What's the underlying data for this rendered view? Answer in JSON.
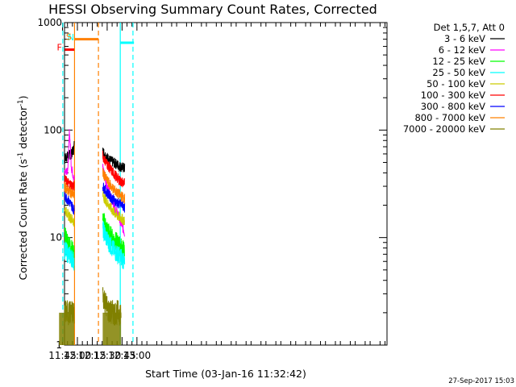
{
  "chart_data": {
    "type": "line",
    "title": "HESSI Observing Summary Count Rates, Corrected",
    "xlabel": "Start Time (03-Jan-16 11:32:42)",
    "ylabel": "Corrected Count Rate (s",
    "ylabel_sup": "-1",
    "ylabel_tail": " detector",
    "ylabel_tail_sup": "-1",
    "ylabel_end": ")",
    "y_scale": "log",
    "ylim": [
      1,
      1000
    ],
    "xlim_minutes": [
      707,
      1032
    ],
    "x_ticks": [
      {
        "label": "11:45",
        "minute": 705
      },
      {
        "label": "12:00",
        "minute": 720
      },
      {
        "label": "12:15",
        "minute": 735
      },
      {
        "label": "12:30",
        "minute": 750
      },
      {
        "label": "12:45",
        "minute": 765
      },
      {
        "label": "13:00",
        "minute": 780
      }
    ],
    "y_ticks": [
      {
        "label": "1",
        "value": 1
      },
      {
        "label": "10",
        "value": 10
      },
      {
        "label": "100",
        "value": 100
      },
      {
        "label": "1000",
        "value": 1000
      }
    ],
    "legend_header": "Det 1,5,7, Att 0",
    "legend_placement": "right",
    "series": [
      {
        "name": "3 - 6 keV",
        "color": "#000000",
        "segments": [
          {
            "x": [
              701.5,
              705,
              708,
              711,
              714,
              716.2,
              716.8
            ],
            "y": [
              46,
              50,
              55,
              58,
              60,
              66,
              73
            ]
          },
          {
            "x": [
              745.5,
              748,
              753,
              758,
              763,
              767.7
            ],
            "y": [
              64,
              58,
              52,
              49,
              46,
              44
            ]
          }
        ]
      },
      {
        "name": "6 - 12 keV",
        "color": "#ff00ff",
        "segments": [
          {
            "x": [
              701.5,
              705,
              708,
              710.5,
              712,
              714,
              716.8
            ],
            "y": [
              38,
              40,
              42,
              44,
              100,
              45,
              35
            ]
          },
          {
            "x": [
              745.5,
              750,
              755,
              760,
              765,
              767.7
            ],
            "y": [
              45,
              30,
              22,
              17,
              13,
              11
            ]
          }
        ]
      },
      {
        "name": "12 - 25 keV",
        "color": "#00ff00",
        "segments": [
          {
            "x": [
              701.5,
              705,
              708,
              711,
              714,
              716.8
            ],
            "y": [
              13,
              11,
              10,
              9,
              8,
              7
            ]
          },
          {
            "x": [
              745.5,
              750,
              755,
              760,
              765,
              767.7
            ],
            "y": [
              15,
              12,
              10,
              9,
              8,
              7.5
            ]
          }
        ]
      },
      {
        "name": "25 - 50 keV",
        "color": "#00ffff",
        "segments": [
          {
            "x": [
              701.5,
              705,
              708,
              711,
              714,
              716.8
            ],
            "y": [
              9,
              8,
              7.5,
              7,
              6.5,
              6
            ]
          },
          {
            "x": [
              745.5,
              750,
              755,
              760,
              765,
              767.7
            ],
            "y": [
              12,
              9.5,
              8,
              7,
              6.5,
              5.5
            ]
          }
        ]
      },
      {
        "name": "50 - 100 keV",
        "color": "#cccc00",
        "segments": [
          {
            "x": [
              701.5,
              705,
              708,
              711,
              714,
              716.8
            ],
            "y": [
              23,
              20,
              18,
              16,
              15,
              14
            ]
          },
          {
            "x": [
              745.5,
              750,
              755,
              760,
              765,
              767.7
            ],
            "y": [
              25,
              21,
              18,
              16,
              15,
              14
            ]
          }
        ]
      },
      {
        "name": "100 - 300 keV",
        "color": "#ff0000",
        "segments": [
          {
            "x": [
              701.5,
              705,
              708,
              711,
              714,
              716.8
            ],
            "y": [
              40,
              37,
              34,
              32,
              31,
              30
            ]
          },
          {
            "x": [
              745.5,
              748,
              752,
              756,
              760,
              764,
              767.7
            ],
            "y": [
              58,
              52,
              45,
              40,
              36,
              33,
              32
            ]
          }
        ]
      },
      {
        "name": "300 - 800 keV",
        "color": "#0000ff",
        "segments": [
          {
            "x": [
              701.5,
              705,
              708,
              711,
              714,
              716.8
            ],
            "y": [
              28,
              26,
              24,
              22,
              20,
              18
            ]
          },
          {
            "x": [
              745.5,
              750,
              755,
              760,
              765,
              767.7
            ],
            "y": [
              30,
              26,
              23,
              21,
              20,
              19
            ]
          }
        ]
      },
      {
        "name": "800 - 7000 keV",
        "color": "#ff8000",
        "segments": [
          {
            "x": [
              701.5,
              705,
              708,
              711,
              714,
              716.8
            ],
            "y": [
              35,
              32,
              29,
              27,
              26,
              25
            ]
          },
          {
            "x": [
              745.5,
              750,
              755,
              760,
              765,
              767.7
            ],
            "y": [
              40,
              34,
              29,
              26,
              24,
              23
            ]
          }
        ]
      },
      {
        "name": "7000 - 20000 keV",
        "color": "#808000",
        "segments": [
          {
            "x": [
              701.5,
              705,
              708,
              711,
              714,
              716.8
            ],
            "y": [
              2,
              2,
              2,
              2,
              2,
              2
            ]
          },
          {
            "x": [
              745.5,
              748,
              752,
              756,
              760,
              764
            ],
            "y": [
              3,
              2.5,
              2,
              2,
              2,
              2
            ]
          }
        ]
      }
    ],
    "flags": [
      {
        "label": "",
        "color": "#00ffff",
        "y": 650,
        "x": [
          690,
          705.3
        ]
      },
      {
        "label": "N",
        "color": "#00ffff",
        "y": 650,
        "x": [
          705.3,
          705.3
        ]
      },
      {
        "label": "F",
        "color": "#ff0000",
        "y": 560,
        "x": [
          707.5,
          716.8
        ]
      },
      {
        "label": "S",
        "color": "#ff8000",
        "y": 700,
        "x": [
          717,
          741.2
        ]
      },
      {
        "label": "",
        "color": "#00ffff",
        "y": 650,
        "x": [
          763.2,
          777
        ]
      }
    ],
    "markers": [
      {
        "minute": 705.3,
        "color": "#00ffff",
        "style": "dashed"
      },
      {
        "minute": 717.1,
        "color": "#ff8000",
        "style": "solid"
      },
      {
        "minute": 741.2,
        "color": "#ff8000",
        "style": "dashed"
      },
      {
        "minute": 763.2,
        "color": "#00ffff",
        "style": "solid"
      },
      {
        "minute": 776.0,
        "color": "#00ffff",
        "style": "dashed"
      }
    ]
  },
  "footer": "27-Sep-2017 15:03"
}
